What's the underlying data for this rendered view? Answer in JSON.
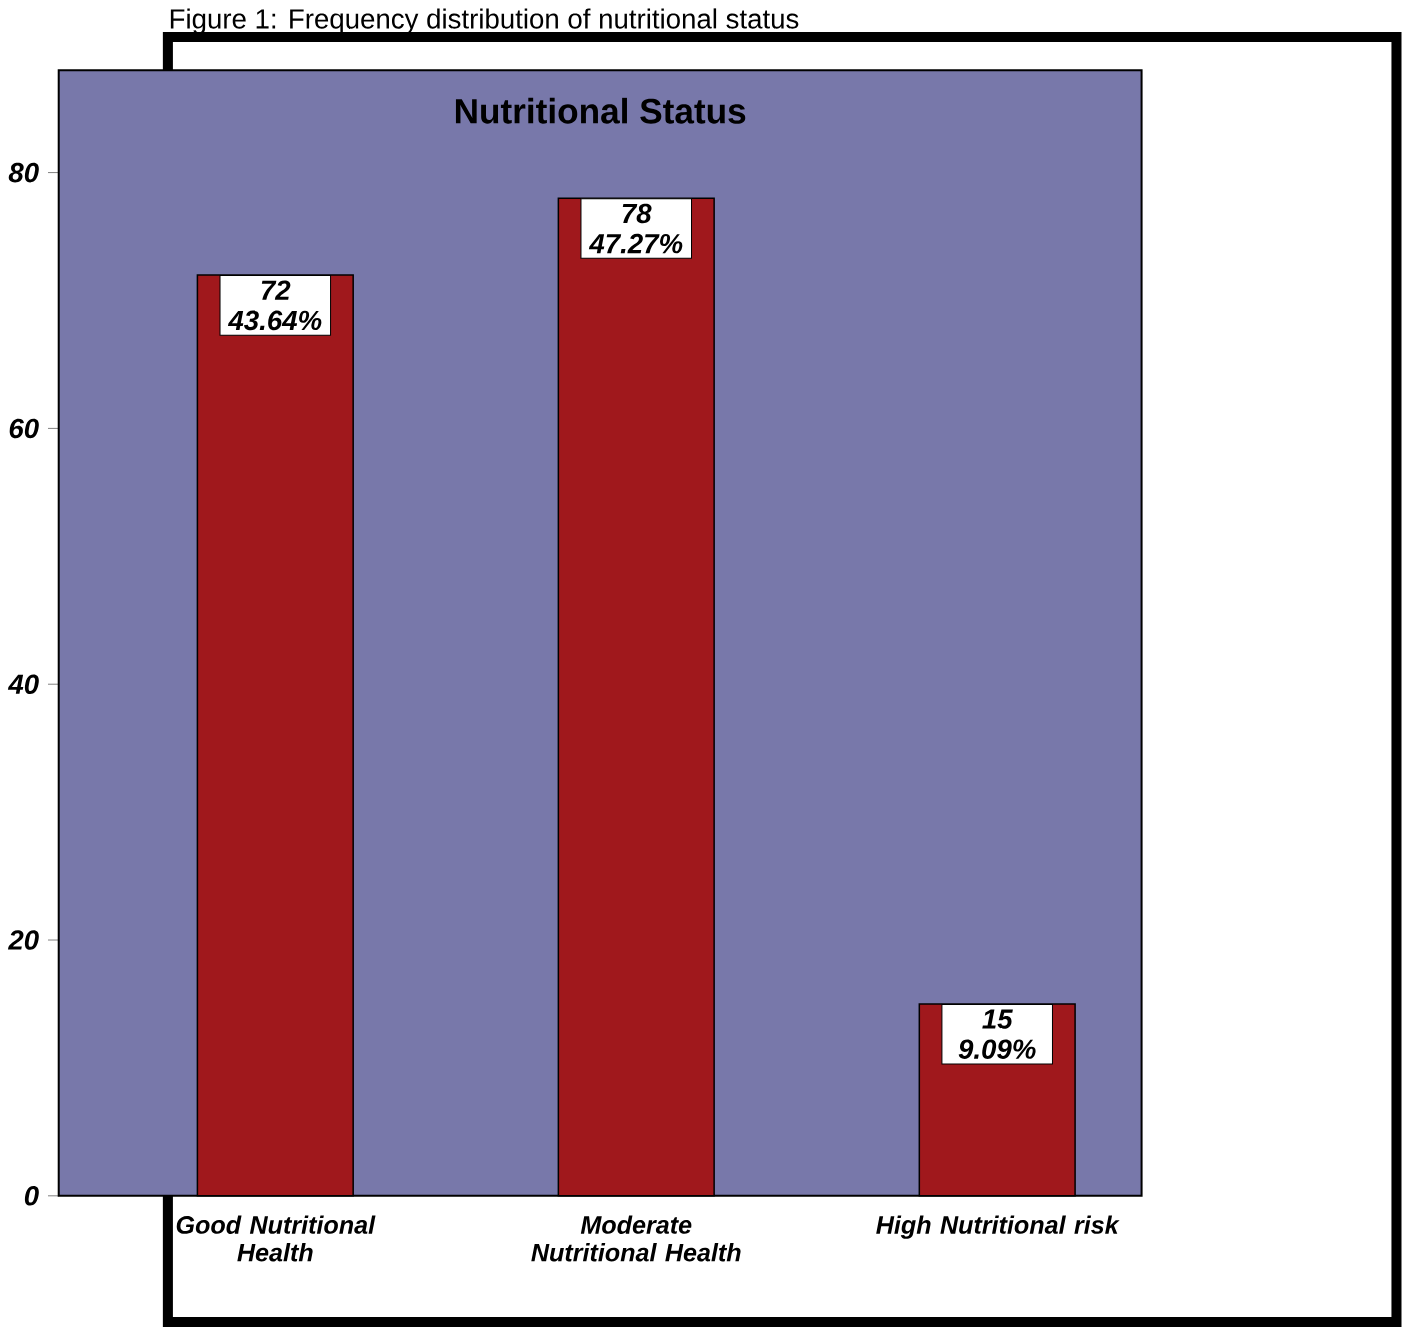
{
  "chart_data": {
    "type": "bar",
    "title": "Nutritional Status",
    "annotations": [
      "Figure 1: Frequency distribution of nutritional status"
    ],
    "categories": [
      "Good Nutritional Health",
      "Moderate Nutritional Health",
      "High Nutritional risk"
    ],
    "values": [
      72,
      78,
      15
    ],
    "value_labels": [
      "72 43.64%",
      "78 47.27%",
      "15 9.09%"
    ],
    "color": "#a0181c",
    "ylim": [
      0,
      88
    ],
    "yticks": [
      0,
      20,
      40,
      60,
      80
    ]
  }
}
